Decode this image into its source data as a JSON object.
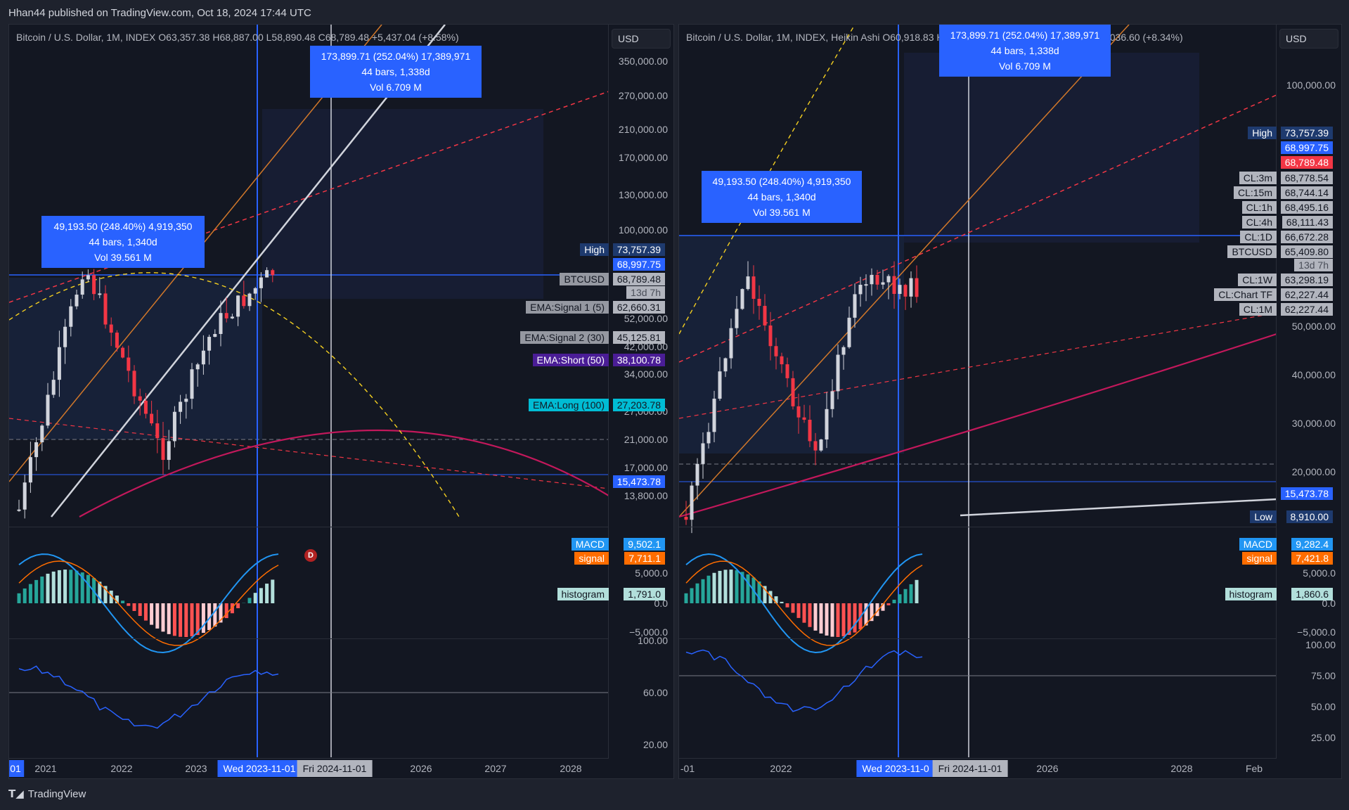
{
  "header": {
    "published": "Hhan44 published on TradingView.com, Oct 18, 2024 17:44 UTC"
  },
  "footer": {
    "brand": "TradingView"
  },
  "left": {
    "legend": "Bitcoin / U.S. Dollar, 1M, INDEX  O63,357.38  H68,887.00  L58,890.48  C68,789.48  +5,437.04 (+8.58%)",
    "currency": "USD",
    "price_ticks": [
      "350,000.00",
      "270,000.00",
      "210,000.00",
      "170,000.00",
      "130,000.00",
      "100,000.00",
      "52,000.00",
      "42,000.00",
      "34,000.00",
      "27,000.00",
      "21,000.00",
      "17,000.00",
      "13,800.00"
    ],
    "labels": {
      "high_name": "High",
      "high_value": "73,757.39",
      "price_blue": "68,997.75",
      "btc_name": "BTCUSD",
      "btc_value": "68,789.48",
      "countdown": "13d 7h",
      "ema1_name": "EMA:Signal 1 (5)",
      "ema1_value": "62,660.31",
      "ema2_name": "EMA:Signal 2 (30)",
      "ema2_value": "45,125.81",
      "ema3_name": "EMA:Short (50)",
      "ema3_value": "38,100.78",
      "ema4_name": "EMA:Long (100)",
      "ema4_value": "27,203.78",
      "support": "15,473.78"
    },
    "measure_top": {
      "line1": "173,899.71 (252.04%) 17,389,971",
      "line2": "44 bars, 1,338d",
      "line3": "Vol 6.709 M"
    },
    "measure_left": {
      "line1": "49,193.50 (248.40%) 4,919,350",
      "line2": "44 bars, 1,340d",
      "line3": "Vol 39.561 M"
    },
    "macd": {
      "macd_name": "MACD",
      "macd_value": "9,502.1",
      "signal_name": "signal",
      "signal_value": "7,711.1",
      "hist_name": "histogram",
      "hist_value": "1,791.0",
      "ticks": [
        "5,000.0",
        "0.0",
        "−5,000.0"
      ],
      "marker": "D"
    },
    "rsi_ticks": [
      "100.00",
      "60.00",
      "20.00"
    ],
    "x_ticks": [
      "01",
      "2021",
      "2022",
      "2023",
      "2026",
      "2027",
      "2028"
    ],
    "x_badge_blue": "Wed 2023-11-01",
    "x_badge_gray": "Fri 2024-11-01"
  },
  "right": {
    "legend": "Bitcoin / U.S. Dollar, 1M, INDEX, Heikin Ashi  O60,918.83  H68,887.00  L58,890.48  C65,409.80  +5,036.60 (+8.34%)",
    "currency": "USD",
    "price_ticks": [
      "100,000.00",
      "50,000.00",
      "40,000.00",
      "30,000.00",
      "20,000.00"
    ],
    "labels": {
      "high_name": "High",
      "high_value": "73,757.39",
      "price_blue": "68,997.75",
      "price_red": "68,789.48",
      "cl3m": "CL:3m",
      "cl3m_v": "68,778.54",
      "cl15m": "CL:15m",
      "cl15m_v": "68,744.14",
      "cl1h": "CL:1h",
      "cl1h_v": "68,495.16",
      "cl4h": "CL:4h",
      "cl4h_v": "68,111.43",
      "cl1d": "CL:1D",
      "cl1d_v": "66,672.28",
      "btc_name": "BTCUSD",
      "btc_value": "65,409.80",
      "countdown": "13d 7h",
      "cl1w": "CL:1W",
      "cl1w_v": "63,298.19",
      "cltf": "CL:Chart TF",
      "cltf_v": "62,227.44",
      "cl1M": "CL:1M",
      "cl1M_v": "62,227.44",
      "support": "15,473.78",
      "low_name": "Low",
      "low_value": "8,910.00"
    },
    "measure_top": {
      "line1": "173,899.71 (252.04%) 17,389,971",
      "line2": "44 bars, 1,338d",
      "line3": "Vol 6.709 M"
    },
    "measure_left": {
      "line1": "49,193.50 (248.40%) 4,919,350",
      "line2": "44 bars, 1,340d",
      "line3": "Vol 39.561 M"
    },
    "macd": {
      "macd_name": "MACD",
      "macd_value": "9,282.4",
      "signal_name": "signal",
      "signal_value": "7,421.8",
      "hist_name": "histogram",
      "hist_value": "1,860.6",
      "ticks": [
        "5,000.0",
        "0.0",
        "−5,000.0"
      ]
    },
    "rsi_ticks": [
      "100.00",
      "75.00",
      "50.00",
      "25.00"
    ],
    "x_ticks": [
      "-01",
      "2022",
      "2026",
      "2028",
      "Feb"
    ],
    "x_badge_blue": "Wed 2023-11-0",
    "x_badge_gray": "Fri 2024-11-01"
  }
}
